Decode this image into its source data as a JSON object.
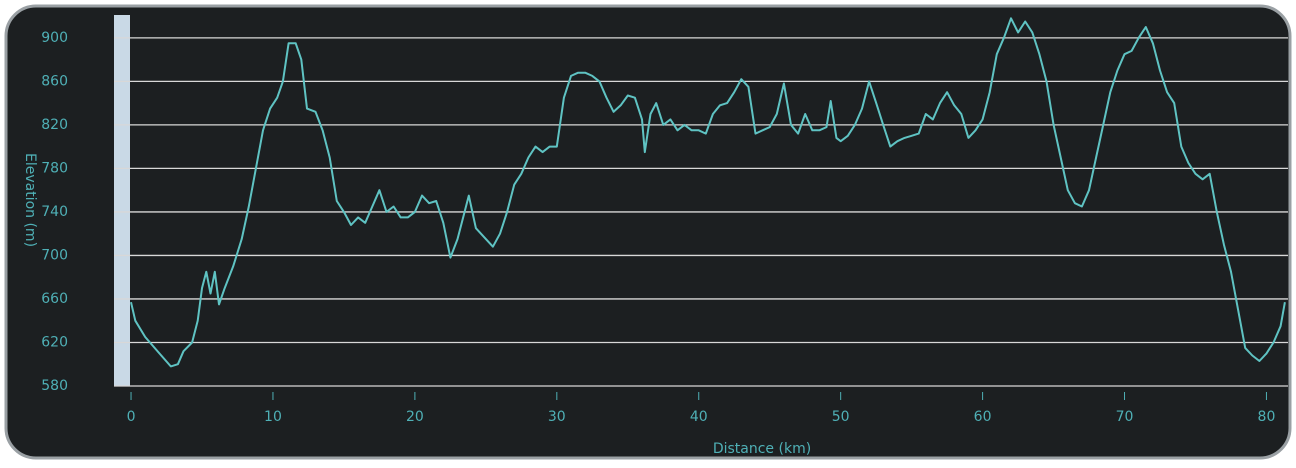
{
  "chart_data": {
    "type": "line",
    "xlabel": "Distance (km)",
    "ylabel": "Elevation (m)",
    "x": [
      0,
      0.3,
      1,
      2,
      2.8,
      3.3,
      3.7,
      4.3,
      4.7,
      5,
      5.3,
      5.6,
      5.9,
      6.2,
      6.6,
      7.2,
      7.8,
      8.3,
      8.8,
      9.3,
      9.8,
      10.3,
      10.7,
      11.1,
      11.6,
      12,
      12.4,
      13,
      13.5,
      14,
      14.5,
      15,
      15.5,
      16,
      16.5,
      17,
      17.5,
      18,
      18.5,
      19,
      19.5,
      20,
      20.5,
      21,
      21.5,
      22,
      22.5,
      23,
      23.5,
      23.8,
      24.3,
      25,
      25.5,
      26,
      26.5,
      27,
      27.5,
      28,
      28.5,
      29,
      29.5,
      30,
      30.5,
      31,
      31.5,
      32,
      32.5,
      33,
      33.5,
      34,
      34.5,
      35,
      35.5,
      36,
      36.2,
      36.6,
      37,
      37.5,
      38,
      38.5,
      39,
      39.5,
      40,
      40.5,
      41,
      41.5,
      42,
      42.5,
      43,
      43.5,
      44,
      44.5,
      45,
      45.5,
      46,
      46.5,
      47,
      47.5,
      48,
      48.5,
      49,
      49.3,
      49.7,
      50,
      50.5,
      51,
      51.5,
      52,
      52.5,
      53,
      53.5,
      54,
      54.5,
      55,
      55.5,
      56,
      56.5,
      57,
      57.5,
      58,
      58.5,
      59,
      59.5,
      60,
      60.5,
      61,
      61.5,
      62,
      62.5,
      63,
      63.5,
      64,
      64.5,
      65,
      65.5,
      66,
      66.5,
      67,
      67.5,
      68,
      68.5,
      69,
      69.5,
      70,
      70.5,
      71,
      71.5,
      72,
      72.5,
      73,
      73.5,
      74,
      74.5,
      75,
      75.5,
      76,
      76.5,
      77,
      77.5,
      78,
      78.5,
      79,
      79.5,
      80,
      80.5,
      81,
      81.3
    ],
    "values": [
      657,
      640,
      625,
      610,
      598,
      600,
      612,
      620,
      640,
      670,
      685,
      665,
      685,
      655,
      670,
      690,
      715,
      745,
      780,
      815,
      835,
      845,
      860,
      895,
      895,
      880,
      835,
      832,
      815,
      790,
      750,
      740,
      728,
      735,
      730,
      745,
      760,
      740,
      745,
      735,
      735,
      740,
      755,
      748,
      750,
      730,
      698,
      715,
      740,
      755,
      725,
      715,
      708,
      720,
      740,
      765,
      775,
      790,
      800,
      795,
      800,
      800,
      845,
      865,
      868,
      868,
      865,
      860,
      845,
      832,
      838,
      847,
      845,
      825,
      795,
      830,
      840,
      820,
      825,
      815,
      820,
      815,
      815,
      812,
      830,
      838,
      840,
      850,
      862,
      855,
      812,
      815,
      818,
      830,
      858,
      820,
      812,
      830,
      815,
      815,
      818,
      842,
      808,
      805,
      810,
      820,
      835,
      860,
      840,
      820,
      800,
      805,
      808,
      810,
      812,
      830,
      825,
      840,
      850,
      838,
      830,
      808,
      815,
      825,
      850,
      885,
      900,
      918,
      905,
      915,
      905,
      885,
      860,
      820,
      790,
      760,
      748,
      745,
      760,
      790,
      820,
      850,
      870,
      885,
      888,
      900,
      910,
      895,
      870,
      850,
      840,
      800,
      785,
      775,
      770,
      775,
      740,
      710,
      685,
      650,
      615,
      608,
      603,
      610,
      620,
      635,
      657
    ],
    "color": "#5fc3c3",
    "xlim": [
      -1.2,
      81.8
    ],
    "ylim": [
      580,
      921
    ],
    "xticks": [
      0,
      10,
      20,
      30,
      40,
      50,
      60,
      70,
      80
    ],
    "yticks": [
      580,
      620,
      660,
      700,
      740,
      780,
      820,
      860,
      900
    ],
    "grid": true
  }
}
